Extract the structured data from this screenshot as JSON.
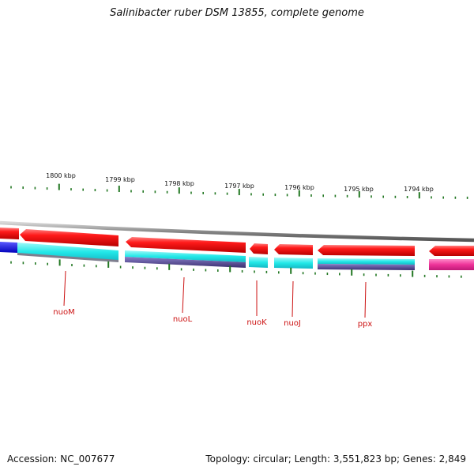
{
  "title": "Salinibacter ruber DSM 13855, complete genome",
  "footer": {
    "accession": "Accession: NC_007677",
    "stats": "Topology: circular; Length: 3,551,823 bp; Genes: 2,849"
  },
  "scale": {
    "unit": "kbp",
    "ticks": [
      "1800 kbp",
      "1799 kbp",
      "1798 kbp",
      "1797 kbp",
      "1796 kbp",
      "1795 kbp",
      "1794 kbp"
    ]
  },
  "genes": [
    {
      "name": "nuoM"
    },
    {
      "name": "nuoL"
    },
    {
      "name": "nuoK"
    },
    {
      "name": "nuoJ"
    },
    {
      "name": "ppx"
    }
  ],
  "colors": {
    "forward_cds": "#ee0000",
    "reverse_track_cyan": "#22e8e8",
    "reverse_track_navy": "#4a3f8a",
    "reverse_track_blue": "#1111ee",
    "reverse_track_pink": "#ee3399",
    "backbone": "#888888",
    "tick": "#227722",
    "label_line": "#cc1111"
  }
}
